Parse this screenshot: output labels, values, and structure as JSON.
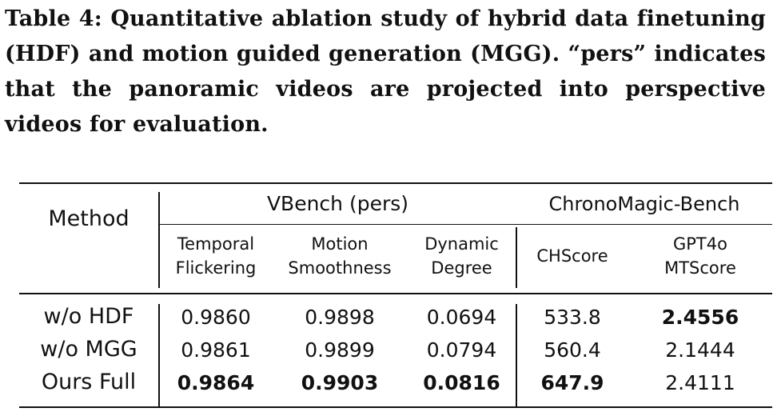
{
  "caption": "Table 4: Quantitative ablation study of hybrid data fine­tuning (HDF) and motion guided generation (MGG). “pers” indicates that the panoramic videos are projected into per­spective videos for evaluation.",
  "table": {
    "method_header": "Method",
    "group_headers": [
      "VBench (pers)",
      "ChronoMagic-Bench"
    ],
    "columns": [
      {
        "line1": "Temporal",
        "line2": "Flickering"
      },
      {
        "line1": "Motion",
        "line2": "Smoothness"
      },
      {
        "line1": "Dynamic",
        "line2": "Degree"
      },
      {
        "line1": "CHScore",
        "line2": ""
      },
      {
        "line1": "GPT4o",
        "line2": "MTScore"
      }
    ],
    "rows": [
      {
        "method": "w/o HDF",
        "values": [
          "0.9860",
          "0.9898",
          "0.0694",
          "533.8",
          "2.4556"
        ],
        "bold": [
          false,
          false,
          false,
          false,
          true
        ]
      },
      {
        "method": "w/o MGG",
        "values": [
          "0.9861",
          "0.9899",
          "0.0794",
          "560.4",
          "2.1444"
        ],
        "bold": [
          false,
          false,
          false,
          false,
          false
        ]
      },
      {
        "method": "Ours Full",
        "values": [
          "0.9864",
          "0.9903",
          "0.0816",
          "647.9",
          "2.4111"
        ],
        "bold": [
          true,
          true,
          true,
          true,
          false
        ]
      }
    ]
  }
}
